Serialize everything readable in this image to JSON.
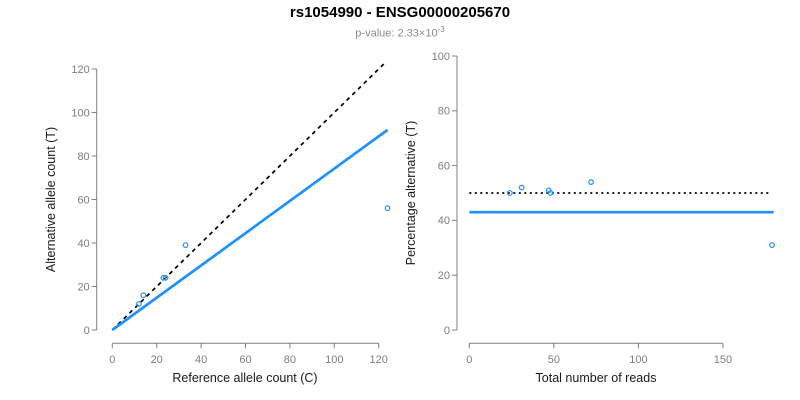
{
  "header": {
    "title": "rs1054990 - ENSG00000205670",
    "subtitle_prefix": "p-value: 2.33×10",
    "subtitle_exponent": "-3"
  },
  "colors": {
    "accent_blue": "#1E90FF",
    "axis_gray": "#808080",
    "tick_label_gray": "#7d7d7d",
    "axis_title_black": "#1a1a1a",
    "line_black": "#000000",
    "background": "#ffffff"
  },
  "chart_data": [
    {
      "type": "scatter",
      "panel": "left",
      "xlabel": "Reference allele count (C)",
      "ylabel": "Alternative allele count (T)",
      "xlim": [
        0,
        125
      ],
      "ylim": [
        0,
        124
      ],
      "xticks": [
        0,
        20,
        40,
        60,
        80,
        100,
        120
      ],
      "yticks": [
        0,
        20,
        40,
        60,
        80,
        100,
        120
      ],
      "grid": false,
      "legend": "none",
      "points": [
        [
          12,
          12
        ],
        [
          14,
          16
        ],
        [
          23,
          24
        ],
        [
          24,
          24
        ],
        [
          33,
          39
        ],
        [
          124,
          56
        ]
      ],
      "lines": [
        {
          "name": "identity-line",
          "style": "dashed",
          "color": "#000000",
          "from": [
            0,
            0
          ],
          "to": [
            123.5,
            123.5
          ]
        },
        {
          "name": "regression-line",
          "style": "solid",
          "color": "#1E90FF",
          "from": [
            0,
            0
          ],
          "to": [
            124,
            92
          ]
        }
      ]
    },
    {
      "type": "scatter",
      "panel": "right",
      "xlabel": "Total number of reads",
      "ylabel": "Percentage alternative (T)",
      "xlim": [
        0,
        185
      ],
      "ylim": [
        0,
        100
      ],
      "xticks": [
        0,
        50,
        100,
        150
      ],
      "yticks": [
        0,
        20,
        40,
        60,
        80,
        100
      ],
      "grid": false,
      "legend": "none",
      "points": [
        [
          24,
          50
        ],
        [
          31,
          52
        ],
        [
          47,
          51
        ],
        [
          48,
          50
        ],
        [
          72,
          54
        ],
        [
          179,
          31
        ]
      ],
      "lines": [
        {
          "name": "expected-50pct-line",
          "style": "dotted",
          "color": "#000000",
          "from": [
            0,
            50
          ],
          "to": [
            177,
            50
          ]
        },
        {
          "name": "mean-pct-line",
          "style": "solid",
          "color": "#1E90FF",
          "from": [
            0,
            43
          ],
          "to": [
            180,
            43
          ]
        }
      ]
    }
  ]
}
